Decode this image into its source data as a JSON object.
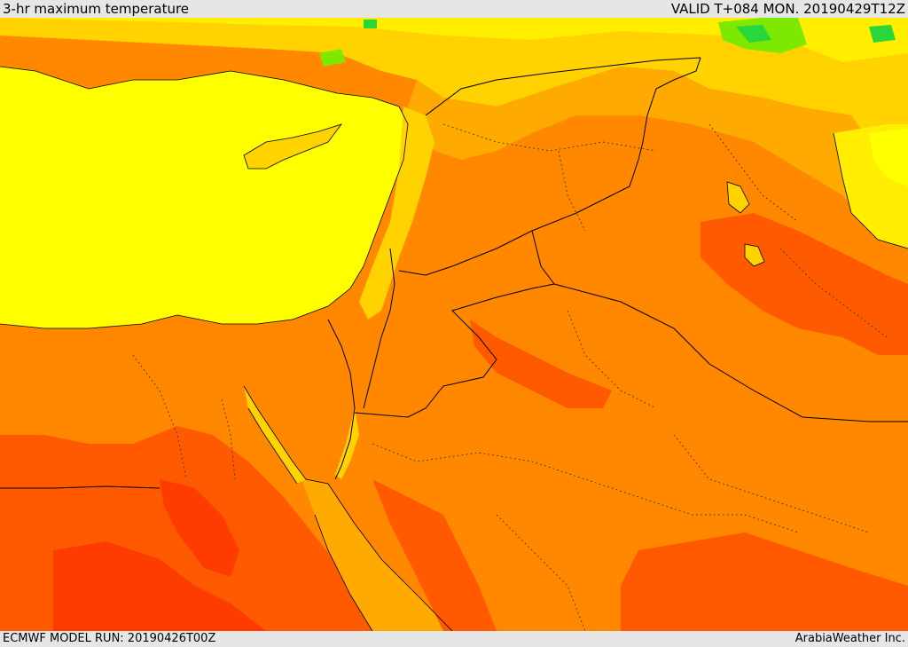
{
  "header": {
    "title": "3-hr maximum temperature",
    "valid": "VALID T+084 MON. 20190429T12Z"
  },
  "footer": {
    "model_run": "ECMWF MODEL RUN: 20190426T00Z",
    "credit": "ArabiaWeather Inc."
  },
  "colors": {
    "sea_yellow": "#ffff00",
    "warm_light": "#ffd200",
    "warm_orange": "#ffaa00",
    "hot_orange": "#ff8800",
    "very_hot": "#ff5a00",
    "extreme": "#ff3c00",
    "cool_green": "#7de800",
    "bright_green": "#29d63b"
  }
}
